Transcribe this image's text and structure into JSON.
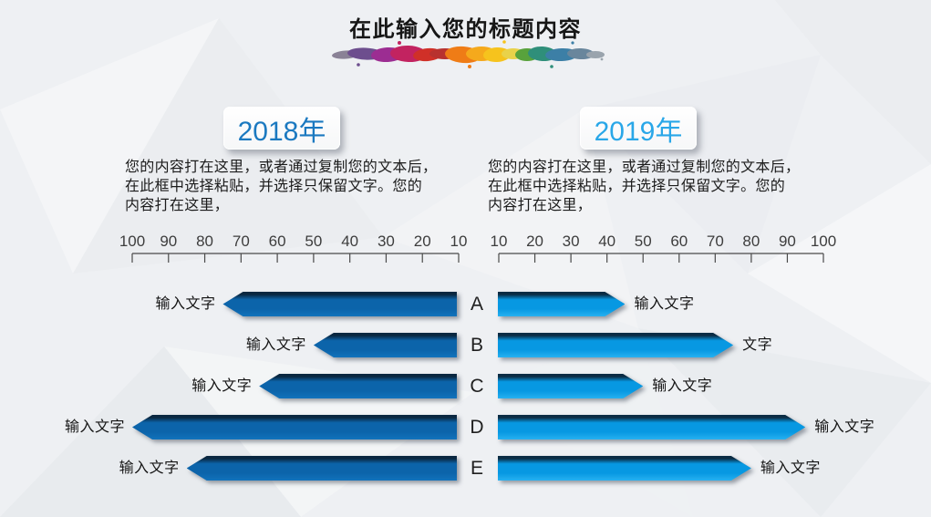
{
  "title": "在此输入您的标题内容",
  "left_panel": {
    "year": "2018年",
    "description": "您的内容打在这里，或者通过复制您的文本后，\n在此框中选择粘贴，并选择只保留文字。您的\n内容打在这里，"
  },
  "right_panel": {
    "year": "2019年",
    "description": "您的内容打在这里，或者通过复制您的文本后，\n在此框中选择粘贴，并选择只保留文字。您的\n内容打在这里，"
  },
  "chart_data": {
    "type": "bar",
    "subtype": "tornado-arrow-chart",
    "categories": [
      "A",
      "B",
      "C",
      "D",
      "E"
    ],
    "axis_left_ticks": [
      "100",
      "90",
      "80",
      "70",
      "60",
      "50",
      "40",
      "30",
      "20",
      "10"
    ],
    "axis_right_ticks": [
      "10",
      "20",
      "30",
      "40",
      "50",
      "60",
      "70",
      "80",
      "90",
      "100"
    ],
    "axis_range": [
      10,
      100
    ],
    "series": [
      {
        "name": "2018",
        "side": "left",
        "color_top": "#0a2740",
        "color": "#0c64aa",
        "color_bottom": "#1273bc",
        "values": [
          75,
          50,
          65,
          100,
          85
        ],
        "labels": [
          "输入文字",
          "输入文字",
          "输入文字",
          "输入文字",
          "输入文字"
        ]
      },
      {
        "name": "2019",
        "side": "right",
        "color_top": "#0b2c44",
        "color": "#0798e2",
        "color_bottom": "#27b1f1",
        "values": [
          45,
          75,
          50,
          95,
          80
        ],
        "labels": [
          "输入文字",
          "文字",
          "输入文字",
          "输入文字",
          "输入文字"
        ]
      }
    ],
    "grid": false,
    "legend": false
  },
  "colors": {
    "background": "#eef0f3",
    "year_2018_text": "#1b79c0",
    "year_2019_text": "#29a7e8",
    "axis": "#4a4a4a",
    "bar_2018": "#0c64aa",
    "bar_2019": "#09a6ec"
  }
}
